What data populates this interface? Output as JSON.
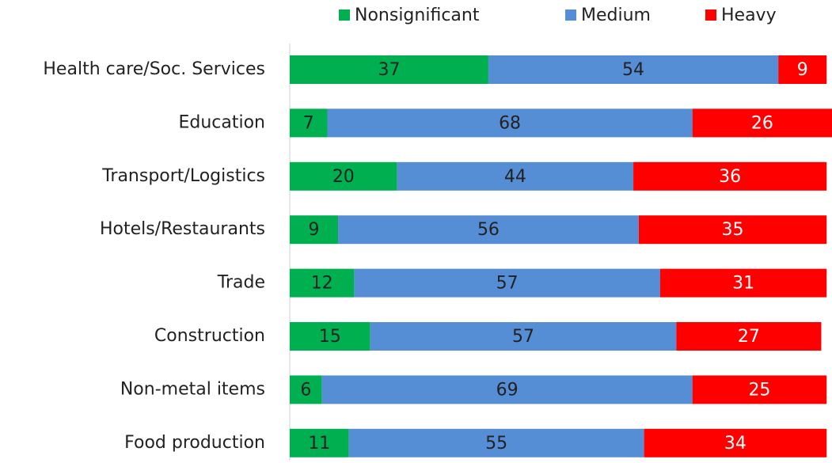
{
  "chart_data": {
    "type": "stacked-bar",
    "orientation": "horizontal",
    "categories": [
      "Health care/Soc. Services",
      "Education",
      "Transport/Logistics",
      "Hotels/Restaurants",
      "Trade",
      "Construction",
      "Non-metal items",
      "Food production"
    ],
    "series": [
      {
        "name": "Nonsignificant",
        "color": "#00b050",
        "values": [
          37,
          7,
          20,
          9,
          12,
          15,
          6,
          11
        ]
      },
      {
        "name": "Medium",
        "color": "#558ed5",
        "values": [
          54,
          68,
          44,
          56,
          57,
          57,
          69,
          55
        ]
      },
      {
        "name": "Heavy",
        "color": "#ff0000",
        "values": [
          9,
          26,
          36,
          35,
          31,
          27,
          25,
          34
        ]
      }
    ],
    "xlim": [
      0,
      101
    ],
    "legend": "top",
    "data_labels": true
  }
}
